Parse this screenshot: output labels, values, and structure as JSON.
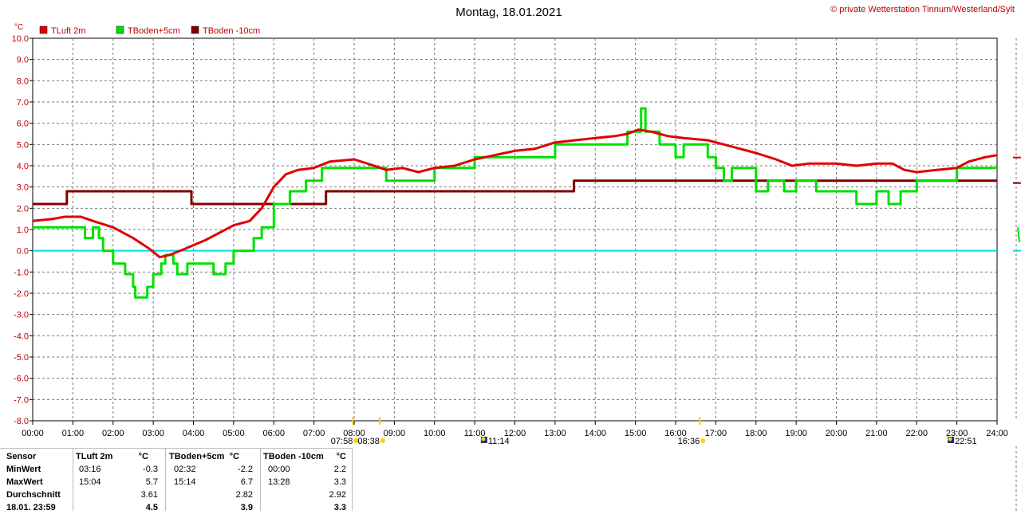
{
  "chart_data": {
    "type": "line",
    "title": "Montag, 18.01.2021",
    "credit": "© private Wetterstation Tinnum/Westerland/Sylt",
    "ylabel": "°C",
    "ylim": [
      -8.0,
      10.0
    ],
    "xlim": [
      0,
      24
    ],
    "grid": true,
    "legend_position": "top-left",
    "y_ticks": [
      "10.0",
      "9.0",
      "8.0",
      "7.0",
      "6.0",
      "5.0",
      "4.0",
      "3.0",
      "2.0",
      "1.0",
      "0.0",
      "-1.0",
      "-2.0",
      "-3.0",
      "-4.0",
      "-5.0",
      "-6.0",
      "-7.0",
      "-8.0"
    ],
    "x_ticks": [
      "00:00",
      "01:00",
      "02:00",
      "03:00",
      "04:00",
      "05:00",
      "06:00",
      "07:00",
      "08:00",
      "09:00",
      "10:00",
      "11:00",
      "12:00",
      "13:00",
      "14:00",
      "15:00",
      "16:00",
      "17:00",
      "18:00",
      "19:00",
      "20:00",
      "21:00",
      "22:00",
      "23:00",
      "24:00"
    ],
    "zero_line_color": "#00e0e0",
    "series": [
      {
        "name": "TLuft 2m",
        "color": "#e00000",
        "points": [
          [
            0,
            1.4
          ],
          [
            0.5,
            1.5
          ],
          [
            0.8,
            1.6
          ],
          [
            1.2,
            1.6
          ],
          [
            1.5,
            1.4
          ],
          [
            2.0,
            1.1
          ],
          [
            2.5,
            0.6
          ],
          [
            2.9,
            0.1
          ],
          [
            3.16,
            -0.3
          ],
          [
            3.4,
            -0.2
          ],
          [
            3.8,
            0.1
          ],
          [
            4.3,
            0.5
          ],
          [
            4.7,
            0.9
          ],
          [
            5.0,
            1.2
          ],
          [
            5.4,
            1.4
          ],
          [
            5.7,
            2.0
          ],
          [
            6.0,
            3.0
          ],
          [
            6.3,
            3.6
          ],
          [
            6.6,
            3.8
          ],
          [
            7.0,
            3.9
          ],
          [
            7.4,
            4.2
          ],
          [
            8.0,
            4.3
          ],
          [
            8.5,
            4.0
          ],
          [
            8.8,
            3.8
          ],
          [
            9.2,
            3.9
          ],
          [
            9.6,
            3.7
          ],
          [
            10.0,
            3.9
          ],
          [
            10.5,
            4.0
          ],
          [
            11.0,
            4.3
          ],
          [
            11.5,
            4.5
          ],
          [
            12.0,
            4.7
          ],
          [
            12.5,
            4.8
          ],
          [
            13.0,
            5.1
          ],
          [
            13.5,
            5.2
          ],
          [
            14.0,
            5.3
          ],
          [
            14.5,
            5.4
          ],
          [
            14.8,
            5.5
          ],
          [
            15.07,
            5.7
          ],
          [
            15.4,
            5.6
          ],
          [
            15.8,
            5.4
          ],
          [
            16.2,
            5.3
          ],
          [
            16.8,
            5.2
          ],
          [
            17.2,
            5.0
          ],
          [
            17.6,
            4.8
          ],
          [
            18.0,
            4.6
          ],
          [
            18.5,
            4.3
          ],
          [
            18.9,
            4.0
          ],
          [
            19.3,
            4.1
          ],
          [
            20.0,
            4.1
          ],
          [
            20.5,
            4.0
          ],
          [
            21.0,
            4.1
          ],
          [
            21.4,
            4.1
          ],
          [
            21.7,
            3.8
          ],
          [
            22.0,
            3.7
          ],
          [
            22.5,
            3.8
          ],
          [
            23.0,
            3.9
          ],
          [
            23.3,
            4.2
          ],
          [
            23.7,
            4.4
          ],
          [
            24.0,
            4.5
          ]
        ]
      },
      {
        "name": "TBoden+5cm",
        "color": "#00e000",
        "points": [
          [
            0,
            1.1
          ],
          [
            1.3,
            1.1
          ],
          [
            1.3,
            0.6
          ],
          [
            1.5,
            0.6
          ],
          [
            1.5,
            1.1
          ],
          [
            1.65,
            1.1
          ],
          [
            1.65,
            0.6
          ],
          [
            1.75,
            0.6
          ],
          [
            1.75,
            0
          ],
          [
            2.0,
            0
          ],
          [
            2.0,
            -0.6
          ],
          [
            2.3,
            -0.6
          ],
          [
            2.3,
            -1.1
          ],
          [
            2.5,
            -1.1
          ],
          [
            2.5,
            -1.7
          ],
          [
            2.55,
            -1.7
          ],
          [
            2.55,
            -2.2
          ],
          [
            2.85,
            -2.2
          ],
          [
            2.85,
            -1.7
          ],
          [
            3.0,
            -1.7
          ],
          [
            3.0,
            -1.1
          ],
          [
            3.2,
            -1.1
          ],
          [
            3.2,
            -0.6
          ],
          [
            3.3,
            -0.6
          ],
          [
            3.3,
            -0.2
          ],
          [
            3.5,
            -0.2
          ],
          [
            3.5,
            -0.6
          ],
          [
            3.6,
            -0.6
          ],
          [
            3.6,
            -1.1
          ],
          [
            3.85,
            -1.1
          ],
          [
            3.85,
            -0.6
          ],
          [
            4.5,
            -0.6
          ],
          [
            4.5,
            -1.1
          ],
          [
            4.8,
            -1.1
          ],
          [
            4.8,
            -0.6
          ],
          [
            5.0,
            -0.6
          ],
          [
            5.0,
            0
          ],
          [
            5.5,
            0
          ],
          [
            5.5,
            0.6
          ],
          [
            5.7,
            0.6
          ],
          [
            5.7,
            1.1
          ],
          [
            6.0,
            1.1
          ],
          [
            6.0,
            2.2
          ],
          [
            6.4,
            2.2
          ],
          [
            6.4,
            2.8
          ],
          [
            6.8,
            2.8
          ],
          [
            6.8,
            3.3
          ],
          [
            7.2,
            3.3
          ],
          [
            7.2,
            3.9
          ],
          [
            8.8,
            3.9
          ],
          [
            8.8,
            3.3
          ],
          [
            10.0,
            3.3
          ],
          [
            10.0,
            3.9
          ],
          [
            11.0,
            3.9
          ],
          [
            11.0,
            4.4
          ],
          [
            13.0,
            4.4
          ],
          [
            13.0,
            5.0
          ],
          [
            14.8,
            5.0
          ],
          [
            14.8,
            5.6
          ],
          [
            15.14,
            5.6
          ],
          [
            15.14,
            6.7
          ],
          [
            15.25,
            6.7
          ],
          [
            15.25,
            5.6
          ],
          [
            15.6,
            5.6
          ],
          [
            15.6,
            5.0
          ],
          [
            16.0,
            5.0
          ],
          [
            16.0,
            4.4
          ],
          [
            16.2,
            4.4
          ],
          [
            16.2,
            5.0
          ],
          [
            16.8,
            5.0
          ],
          [
            16.8,
            4.4
          ],
          [
            17.0,
            4.4
          ],
          [
            17.0,
            3.9
          ],
          [
            17.2,
            3.9
          ],
          [
            17.2,
            3.3
          ],
          [
            17.4,
            3.3
          ],
          [
            17.4,
            3.9
          ],
          [
            18.0,
            3.9
          ],
          [
            18.0,
            2.8
          ],
          [
            18.3,
            2.8
          ],
          [
            18.3,
            3.3
          ],
          [
            18.7,
            3.3
          ],
          [
            18.7,
            2.8
          ],
          [
            19.0,
            2.8
          ],
          [
            19.0,
            3.3
          ],
          [
            19.5,
            3.3
          ],
          [
            19.5,
            2.8
          ],
          [
            20.5,
            2.8
          ],
          [
            20.5,
            2.2
          ],
          [
            21.0,
            2.2
          ],
          [
            21.0,
            2.8
          ],
          [
            21.3,
            2.8
          ],
          [
            21.3,
            2.2
          ],
          [
            21.6,
            2.2
          ],
          [
            21.6,
            2.8
          ],
          [
            22.0,
            2.8
          ],
          [
            22.0,
            3.3
          ],
          [
            23.0,
            3.3
          ],
          [
            23.0,
            3.9
          ],
          [
            24.0,
            3.9
          ]
        ]
      },
      {
        "name": "TBoden -10cm",
        "color": "#800000",
        "points": [
          [
            0,
            2.2
          ],
          [
            0.85,
            2.2
          ],
          [
            0.85,
            2.8
          ],
          [
            3.95,
            2.8
          ],
          [
            3.95,
            2.2
          ],
          [
            7.3,
            2.2
          ],
          [
            7.3,
            2.8
          ],
          [
            13.47,
            2.8
          ],
          [
            13.47,
            3.3
          ],
          [
            24.0,
            3.3
          ]
        ]
      }
    ],
    "markers": [
      {
        "label": "07:58",
        "time": 7.967,
        "symbol": "sunrise"
      },
      {
        "label": "08:38",
        "time": 8.633,
        "symbol": "sun"
      },
      {
        "label": "11:14",
        "time": 11.233,
        "symbol": "moonrise"
      },
      {
        "label": "16:36",
        "time": 16.6,
        "symbol": "sun"
      },
      {
        "label": "22:51",
        "time": 22.85,
        "symbol": "moonset"
      }
    ],
    "right_side_current": [
      4.5,
      3.3,
      0.0
    ]
  },
  "stats": {
    "headers": [
      "Sensor",
      "TLuft 2m",
      "°C",
      "TBoden+5cm",
      "°C",
      "TBoden -10cm",
      "°C"
    ],
    "rows": [
      {
        "label": "MinWert",
        "t1": "03:16",
        "v1": "-0.3",
        "t2": "02:32",
        "v2": "-2.2",
        "t3": "00:00",
        "v3": "2.2"
      },
      {
        "label": "MaxWert",
        "t1": "15:04",
        "v1": "5.7",
        "t2": "15:14",
        "v2": "6.7",
        "t3": "13:28",
        "v3": "3.3"
      },
      {
        "label": "Durchschnitt",
        "t1": "",
        "v1": "3.61",
        "t2": "",
        "v2": "2.82",
        "t3": "",
        "v3": "2.92"
      },
      {
        "label": "18.01. 23:59",
        "t1": "",
        "v1": "4.5",
        "t2": "",
        "v2": "3.9",
        "t3": "",
        "v3": "3.3"
      }
    ]
  }
}
